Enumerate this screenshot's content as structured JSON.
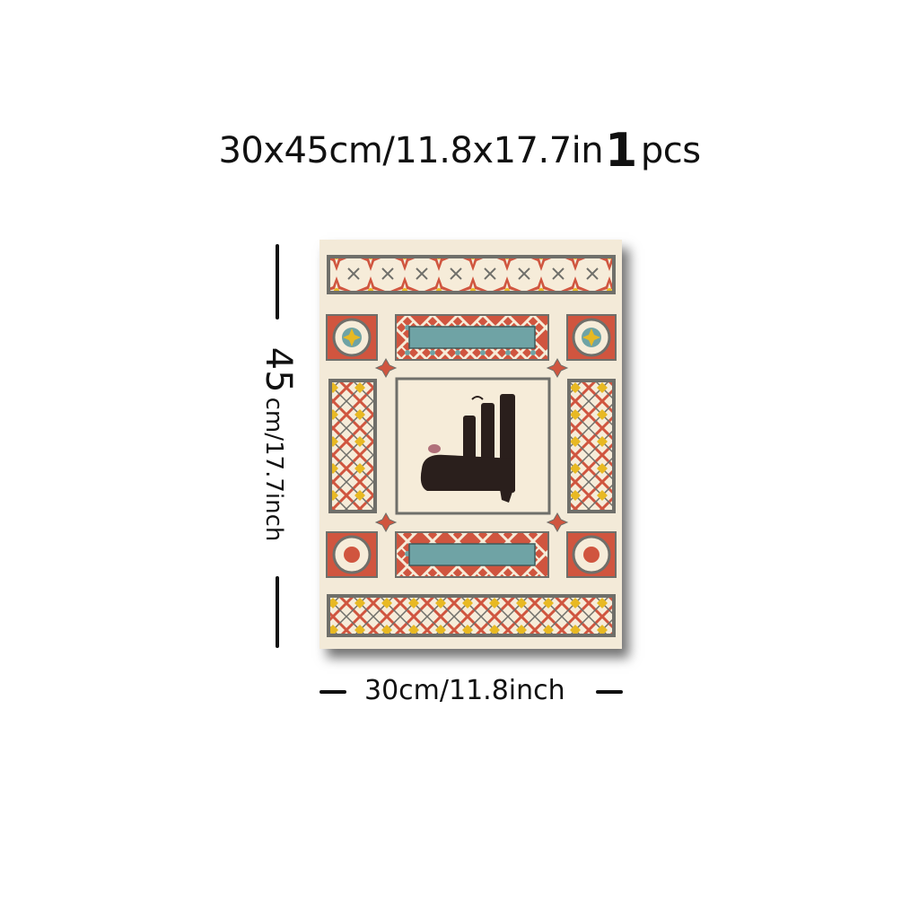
{
  "header": {
    "size_text": "30x45cm/11.8x17.7in",
    "quantity": "1",
    "unit_label": "pcs"
  },
  "dimensions": {
    "height_value": "45",
    "height_unit": "cm/17.7inch",
    "width_label": "30cm/11.8inch"
  },
  "artwork": {
    "background_color": "#f3ead8",
    "accent_red": "#d0553f",
    "accent_teal": "#6fa3a5",
    "accent_gold": "#e8b923",
    "border_gray": "#6f6f6a",
    "calligraphy_color": "#2a1f1c"
  }
}
